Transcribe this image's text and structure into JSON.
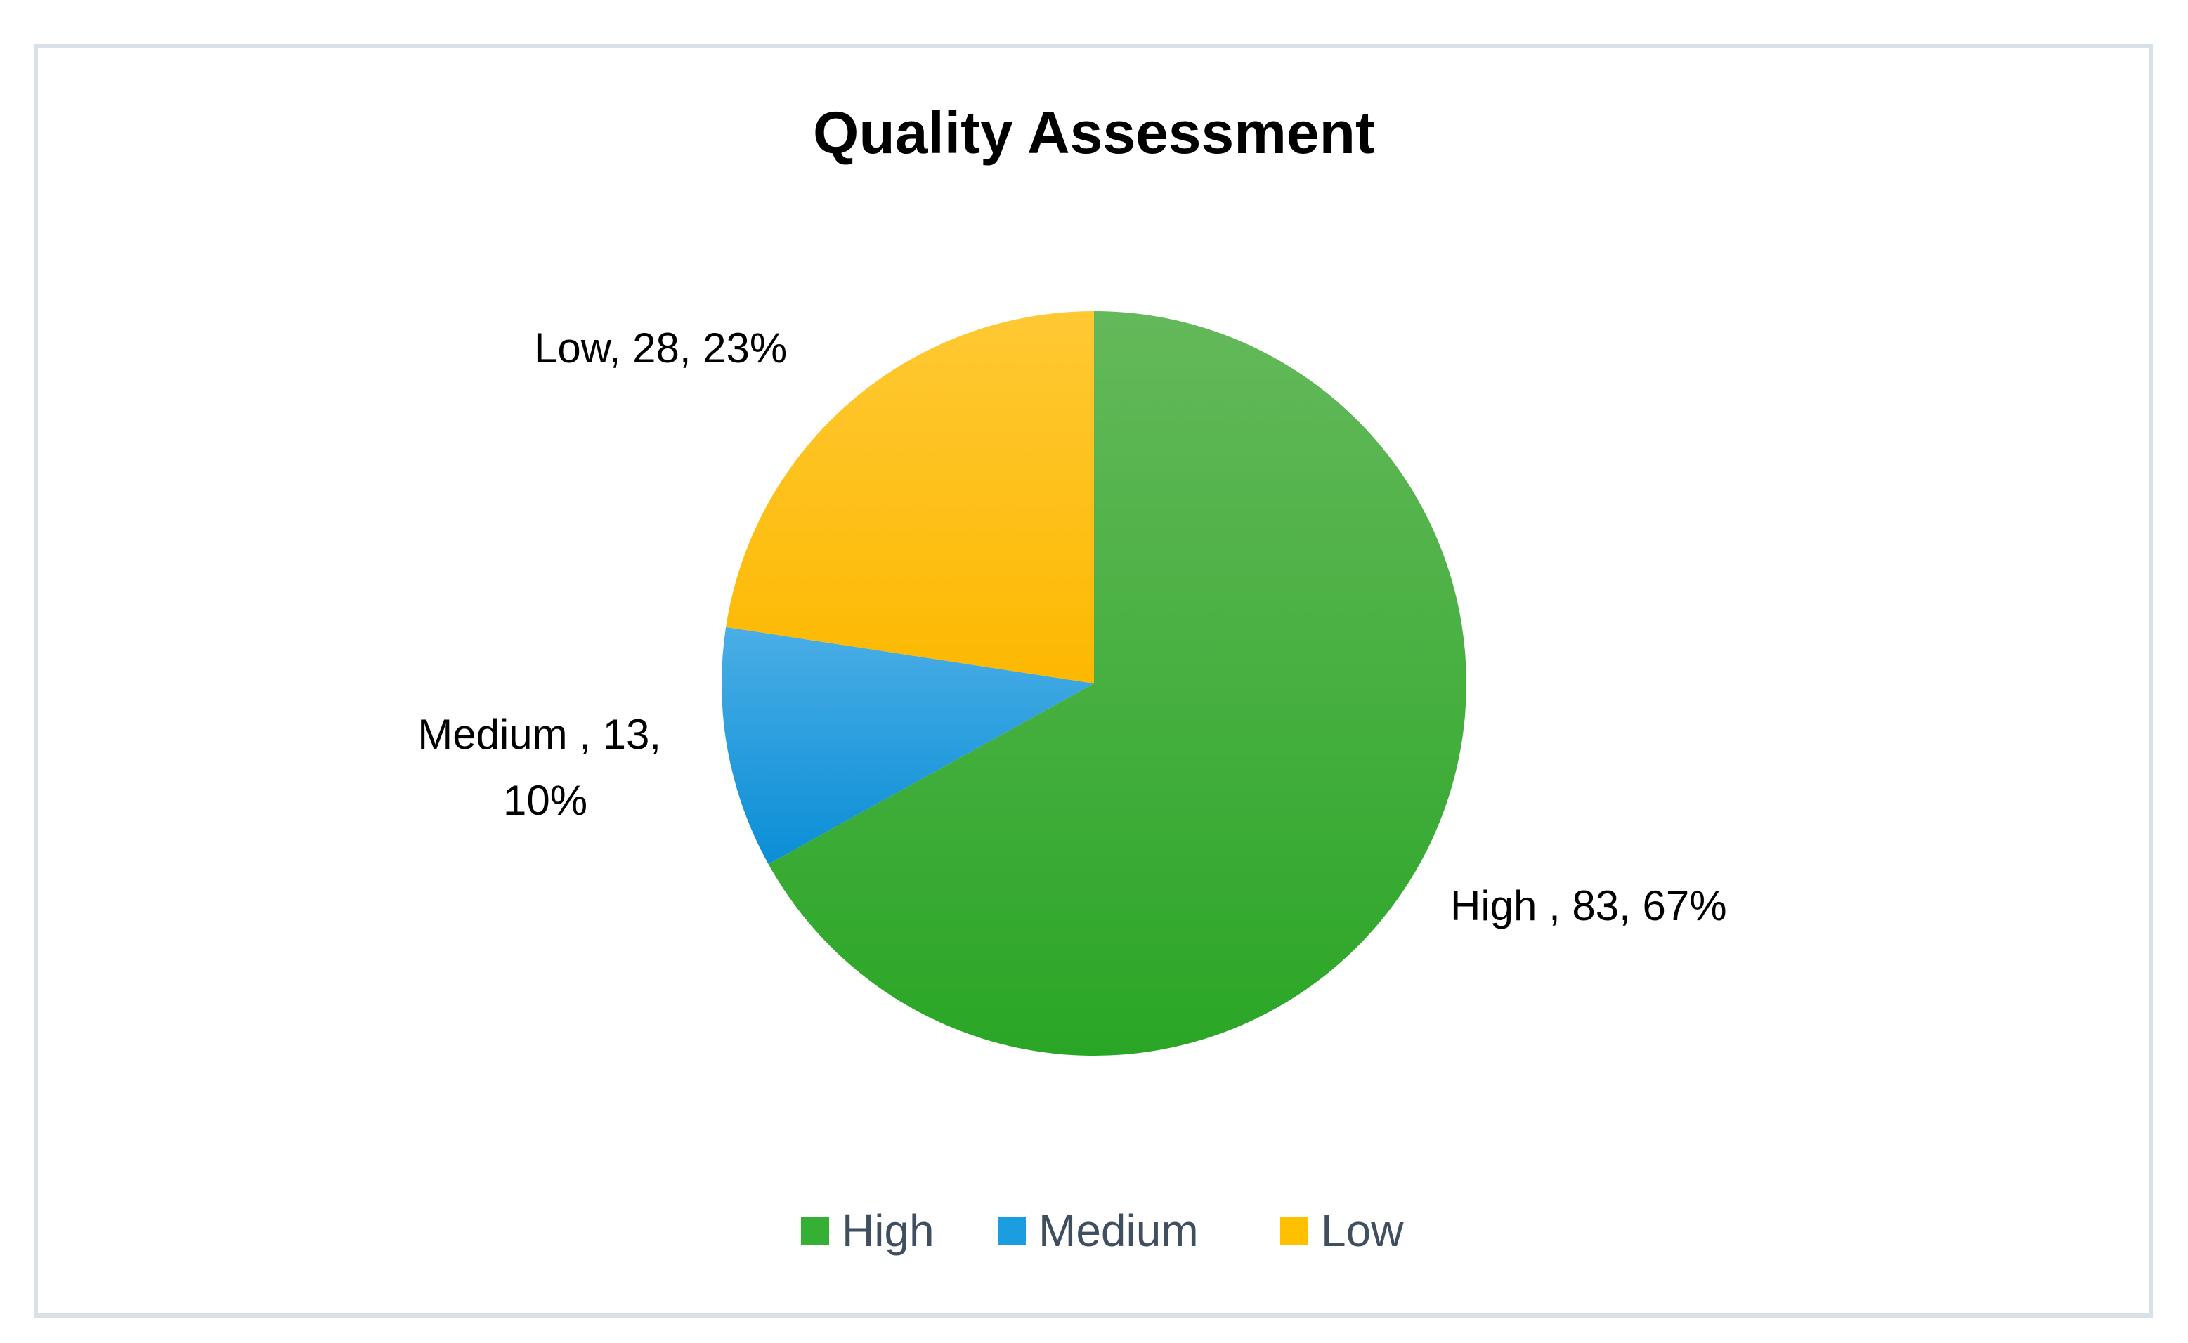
{
  "chart_data": {
    "type": "pie",
    "title": "Quality Assessment",
    "slices": [
      {
        "name": "High",
        "value": 83,
        "percent": 67,
        "label_lines": [
          "High , 83, 67%"
        ],
        "color": "#36b034"
      },
      {
        "name": "Medium",
        "value": 13,
        "percent": 10,
        "label_lines": [
          "Medium , 13,",
          "10%"
        ],
        "color": "#1a9ee0"
      },
      {
        "name": "Low",
        "value": 28,
        "percent": 23,
        "label_lines": [
          "Low, 28, 23%"
        ],
        "color": "#ffc000"
      }
    ],
    "legend": [
      "High",
      "Medium",
      "Low"
    ],
    "legend_position": "bottom"
  }
}
